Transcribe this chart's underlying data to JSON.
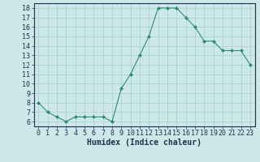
{
  "x": [
    0,
    1,
    2,
    3,
    4,
    5,
    6,
    7,
    8,
    9,
    10,
    11,
    12,
    13,
    14,
    15,
    16,
    17,
    18,
    19,
    20,
    21,
    22,
    23
  ],
  "y": [
    8.0,
    7.0,
    6.5,
    6.0,
    6.5,
    6.5,
    6.5,
    6.5,
    6.0,
    9.5,
    11.0,
    13.0,
    15.0,
    18.0,
    18.0,
    18.0,
    17.0,
    16.0,
    14.5,
    14.5,
    13.5,
    13.5,
    13.5,
    12.0
  ],
  "line_color": "#2d8b7a",
  "marker_color": "#2d8b7a",
  "bg_color": "#cde8e8",
  "grid_color": "#aacece",
  "xlabel": "Humidex (Indice chaleur)",
  "ylim_min": 5.5,
  "ylim_max": 18.5,
  "yticks": [
    6,
    7,
    8,
    9,
    10,
    11,
    12,
    13,
    14,
    15,
    16,
    17,
    18
  ],
  "xticks": [
    0,
    1,
    2,
    3,
    4,
    5,
    6,
    7,
    8,
    9,
    10,
    11,
    12,
    13,
    14,
    15,
    16,
    17,
    18,
    19,
    20,
    21,
    22,
    23
  ],
  "xtick_labels": [
    "0",
    "1",
    "2",
    "3",
    "4",
    "5",
    "6",
    "7",
    "8",
    "9",
    "10",
    "11",
    "12",
    "13",
    "14",
    "15",
    "16",
    "17",
    "18",
    "19",
    "20",
    "21",
    "22",
    "23"
  ],
  "tick_font_size": 6,
  "xlabel_font_size": 7,
  "font_color": "#203050",
  "axis_color": "#203050"
}
